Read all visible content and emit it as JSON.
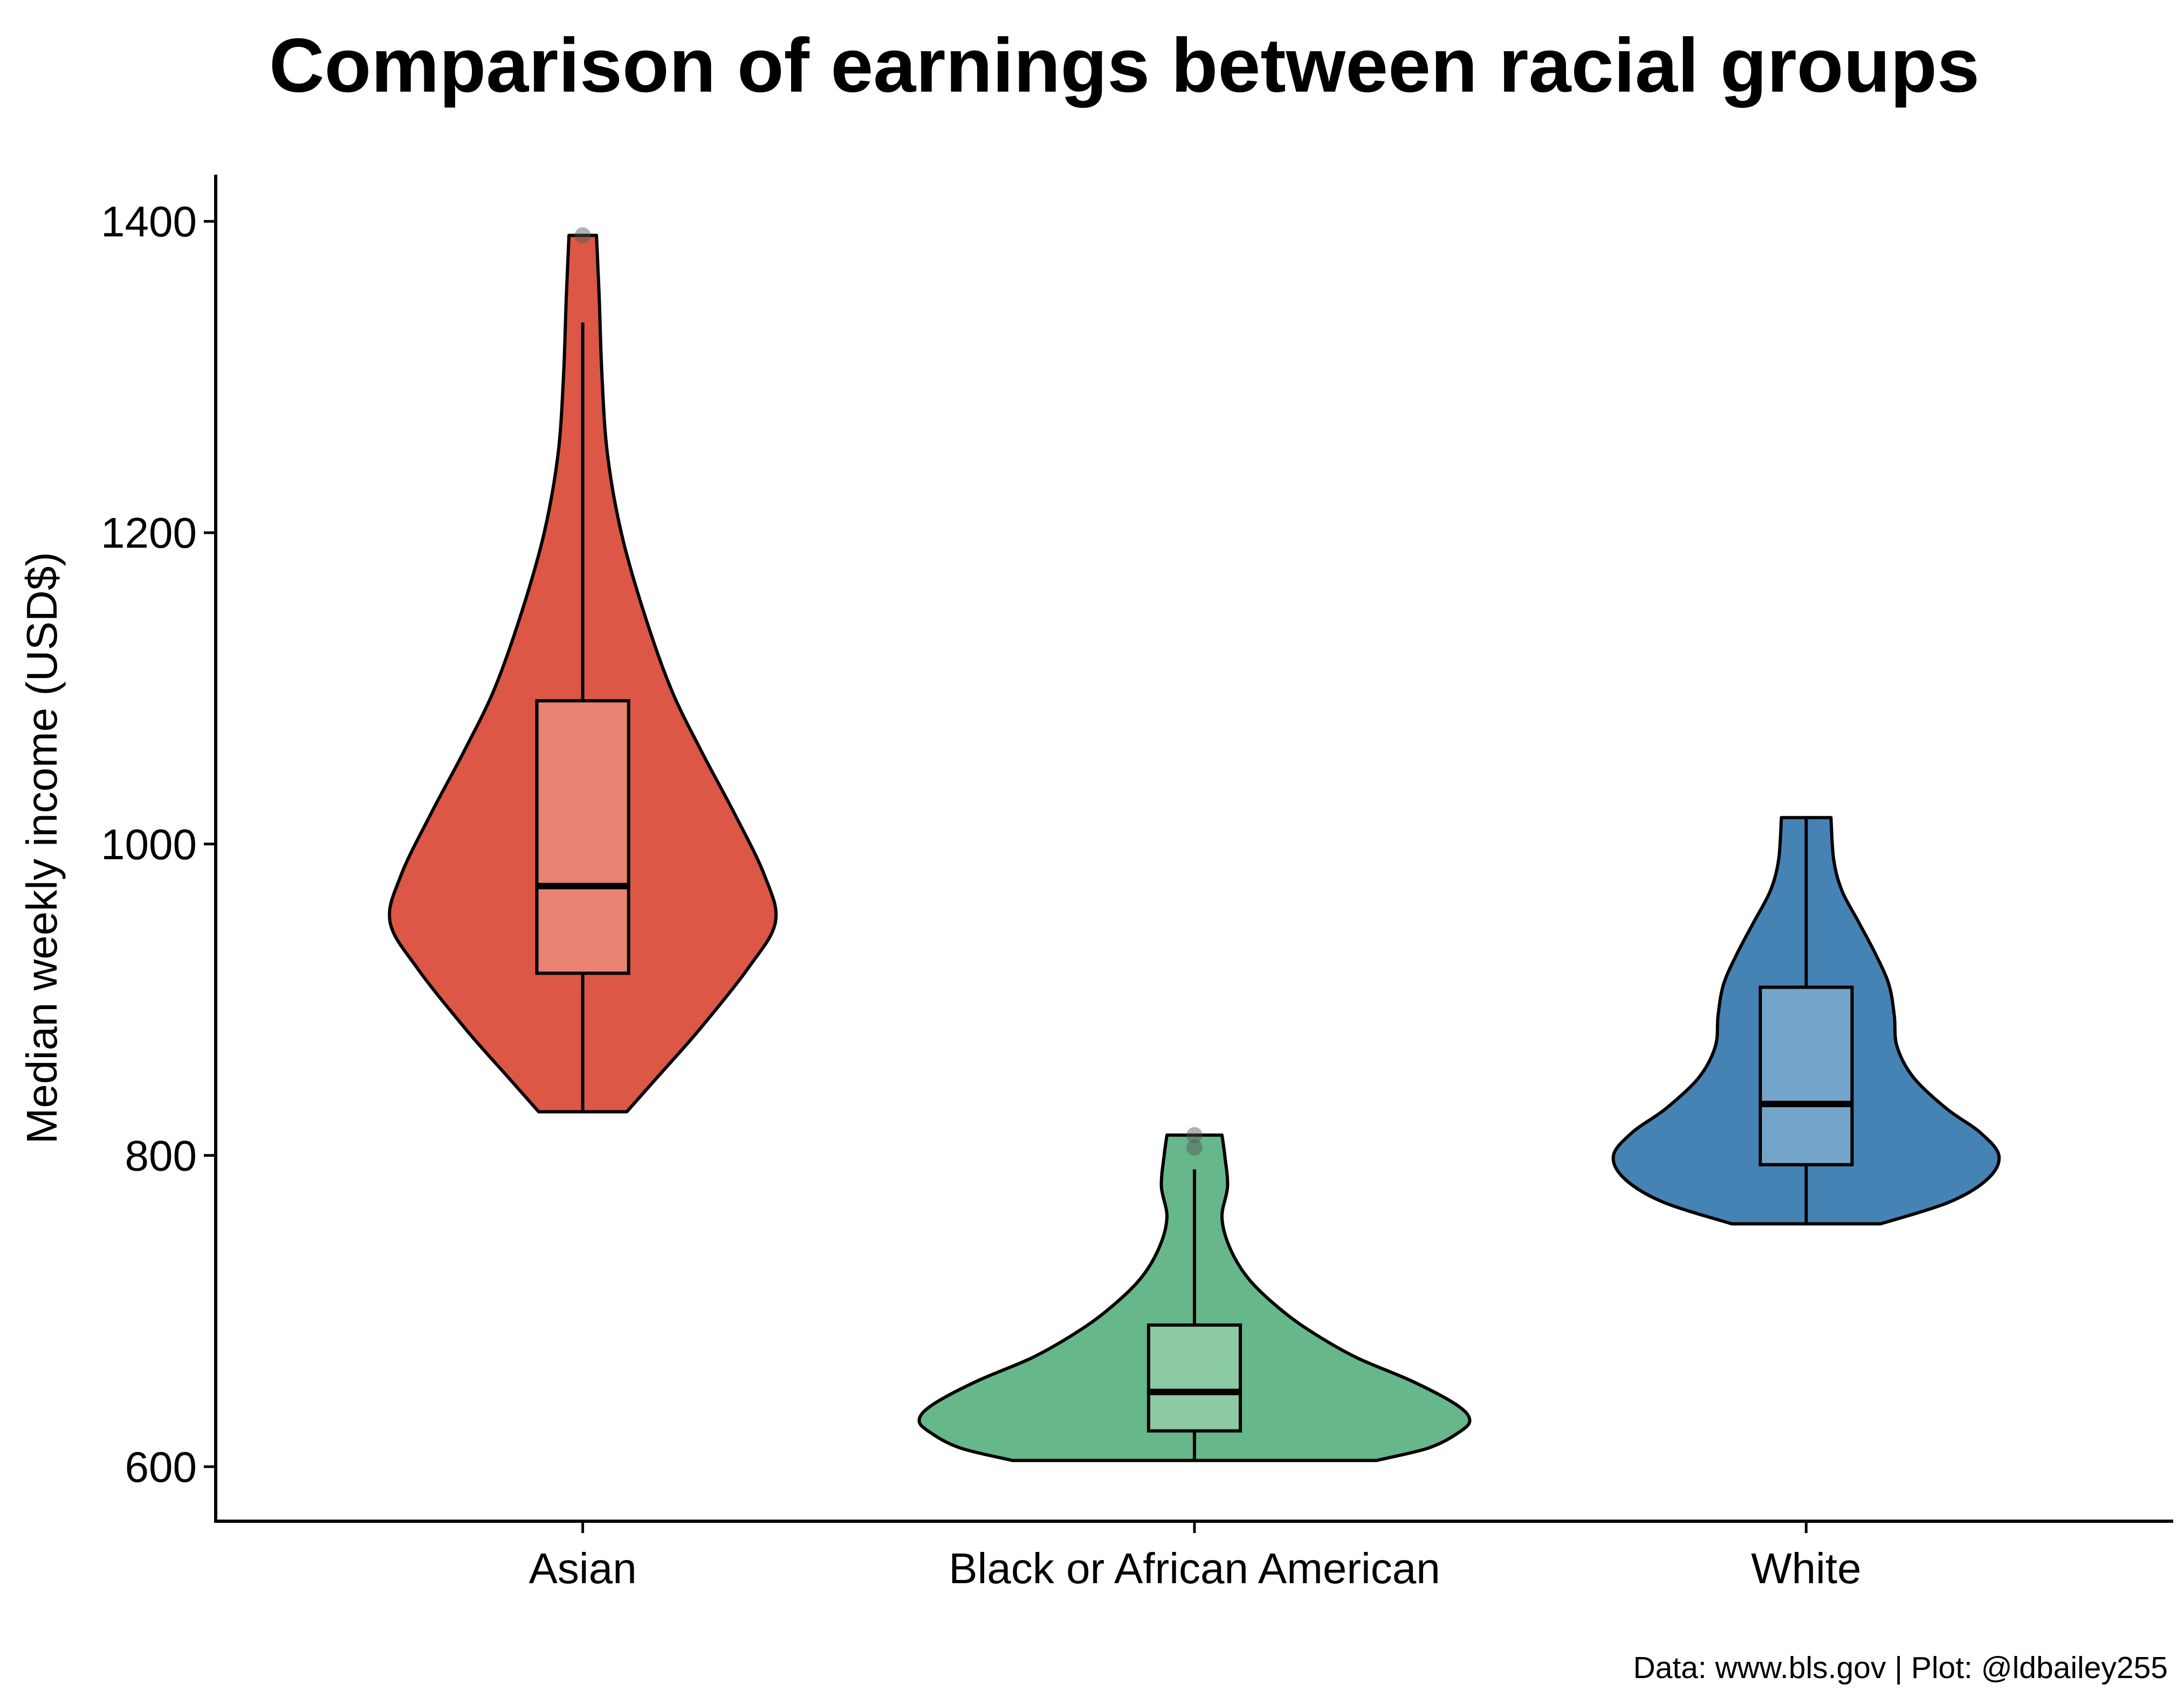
{
  "chart_data": {
    "type": "violin",
    "title": "Comparison of earnings between racial groups",
    "xlabel": "",
    "ylabel": "Median weekly income (USD$)",
    "ylim": [
      565,
      1430
    ],
    "yticks": [
      600,
      800,
      1000,
      1200,
      1400
    ],
    "caption": "Data: www.bls.gov | Plot: @ldbailey255",
    "categories": [
      "Asian",
      "Black or African American",
      "White"
    ],
    "grid": false,
    "legend": "none",
    "groups": [
      {
        "category": "Asian",
        "color": "#DC5746",
        "box_color": "#E88272",
        "box": {
          "whisker_low": 828,
          "q1": 917,
          "median": 973,
          "q3": 1092,
          "whisker_high": 1335
        },
        "outliers": [
          1391
        ],
        "range": [
          828,
          1391
        ],
        "density": [
          {
            "y": 828,
            "w": 0.16
          },
          {
            "y": 850,
            "w": 0.27
          },
          {
            "y": 880,
            "w": 0.42
          },
          {
            "y": 920,
            "w": 0.6
          },
          {
            "y": 950,
            "w": 0.7
          },
          {
            "y": 980,
            "w": 0.66
          },
          {
            "y": 1020,
            "w": 0.55
          },
          {
            "y": 1060,
            "w": 0.43
          },
          {
            "y": 1100,
            "w": 0.32
          },
          {
            "y": 1150,
            "w": 0.22
          },
          {
            "y": 1200,
            "w": 0.14
          },
          {
            "y": 1250,
            "w": 0.09
          },
          {
            "y": 1300,
            "w": 0.07
          },
          {
            "y": 1350,
            "w": 0.06
          },
          {
            "y": 1391,
            "w": 0.05
          }
        ]
      },
      {
        "category": "Black or African American",
        "color": "#66B78A",
        "box_color": "#8CC9A5",
        "box": {
          "whisker_low": 604,
          "q1": 623,
          "median": 648,
          "q3": 691,
          "whisker_high": 791
        },
        "outliers": [
          805,
          813
        ],
        "range": [
          604,
          813
        ],
        "density": [
          {
            "y": 604,
            "w": 0.66
          },
          {
            "y": 612,
            "w": 0.85
          },
          {
            "y": 622,
            "w": 0.96
          },
          {
            "y": 630,
            "w": 1.0
          },
          {
            "y": 640,
            "w": 0.95
          },
          {
            "y": 655,
            "w": 0.79
          },
          {
            "y": 670,
            "w": 0.59
          },
          {
            "y": 685,
            "w": 0.44
          },
          {
            "y": 700,
            "w": 0.32
          },
          {
            "y": 720,
            "w": 0.2
          },
          {
            "y": 740,
            "w": 0.13
          },
          {
            "y": 760,
            "w": 0.1
          },
          {
            "y": 780,
            "w": 0.12
          },
          {
            "y": 800,
            "w": 0.11
          },
          {
            "y": 813,
            "w": 0.1
          }
        ]
      },
      {
        "category": "White",
        "color": "#4583B5",
        "box_color": "#73A5CA",
        "box": {
          "whisker_low": 756,
          "q1": 794,
          "median": 833,
          "q3": 908,
          "whisker_high": 1017
        },
        "outliers": [],
        "range": [
          756,
          1017
        ],
        "density": [
          {
            "y": 756,
            "w": 0.27
          },
          {
            "y": 770,
            "w": 0.52
          },
          {
            "y": 785,
            "w": 0.66
          },
          {
            "y": 800,
            "w": 0.7
          },
          {
            "y": 815,
            "w": 0.63
          },
          {
            "y": 830,
            "w": 0.51
          },
          {
            "y": 850,
            "w": 0.39
          },
          {
            "y": 870,
            "w": 0.33
          },
          {
            "y": 890,
            "w": 0.32
          },
          {
            "y": 910,
            "w": 0.3
          },
          {
            "y": 930,
            "w": 0.25
          },
          {
            "y": 950,
            "w": 0.19
          },
          {
            "y": 970,
            "w": 0.13
          },
          {
            "y": 990,
            "w": 0.1
          },
          {
            "y": 1017,
            "w": 0.09
          }
        ]
      }
    ]
  }
}
